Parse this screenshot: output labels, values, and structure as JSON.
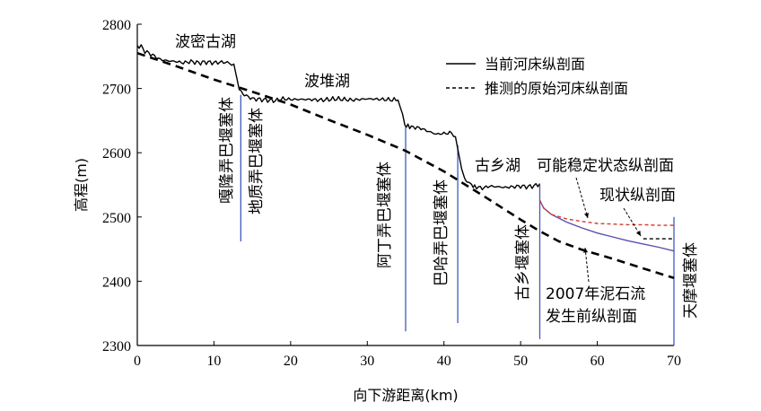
{
  "chart_data": {
    "type": "line",
    "xlabel": "向下游距离(km)",
    "ylabel": "高程(m)",
    "xlim": [
      0,
      70
    ],
    "ylim": [
      2300,
      2800
    ],
    "xticks": [
      0,
      10,
      20,
      30,
      40,
      50,
      60,
      70
    ],
    "yticks": [
      2300,
      2400,
      2500,
      2600,
      2700,
      2800
    ],
    "legend_position": "top-right",
    "legend": [
      "当前河床纵剖面",
      "推测的原始河床纵剖面"
    ],
    "series": [
      {
        "name": "当前河床纵剖面",
        "style": "solid",
        "color": "#000000",
        "x": [
          0,
          0.5,
          1,
          2,
          3,
          4,
          5,
          6,
          7,
          8,
          9,
          10,
          11,
          12,
          12.6,
          13,
          13.3,
          13.6,
          14,
          15,
          16,
          17,
          18,
          19,
          20,
          22,
          24,
          26,
          28,
          30,
          32,
          34,
          34.6,
          34.9,
          35.3,
          36,
          37,
          38,
          39,
          40,
          41,
          41.5,
          41.9,
          42.3,
          42.7,
          43,
          43.6,
          44,
          44.5,
          45,
          46,
          47,
          48,
          49,
          50,
          51,
          52,
          52.5
        ],
        "y": [
          2767,
          2765,
          2758,
          2752,
          2745,
          2743,
          2742,
          2740,
          2742,
          2740,
          2741,
          2740,
          2741,
          2740,
          2738,
          2715,
          2698,
          2693,
          2690,
          2684,
          2683,
          2682,
          2681,
          2684,
          2683,
          2683,
          2682,
          2684,
          2682,
          2684,
          2683,
          2682,
          2660,
          2643,
          2641,
          2640,
          2638,
          2633,
          2629,
          2630,
          2631,
          2625,
          2600,
          2575,
          2560,
          2552,
          2549,
          2548,
          2546,
          2545,
          2548,
          2547,
          2546,
          2547,
          2548,
          2547,
          2549,
          2552
        ]
      },
      {
        "name": "推测的原始河床纵剖面",
        "style": "dashed",
        "color": "#000000",
        "x": [
          0,
          5,
          10,
          15,
          20,
          25,
          30,
          35,
          40,
          45,
          50,
          52.5,
          55,
          58,
          62,
          66,
          70
        ],
        "y": [
          2755,
          2735,
          2714,
          2695,
          2675,
          2651,
          2628,
          2603,
          2571,
          2534,
          2496,
          2478,
          2462,
          2449,
          2435,
          2420,
          2405
        ]
      },
      {
        "style": "solid",
        "color": "#5a4fb0",
        "x": [
          52.5,
          53,
          54,
          56,
          58,
          60,
          62,
          64,
          66,
          68,
          70
        ],
        "y": [
          2526,
          2514,
          2504,
          2492,
          2483,
          2475,
          2469,
          2463,
          2458,
          2453,
          2447
        ]
      },
      {
        "style": "dashed",
        "color": "#d23b2e",
        "x": [
          52.5,
          53,
          54,
          56,
          58,
          60,
          62,
          64,
          66,
          68,
          70
        ],
        "y": [
          2526,
          2514,
          2504,
          2497,
          2493,
          2490,
          2489,
          2488,
          2488,
          2487,
          2487
        ]
      },
      {
        "style": "dashed",
        "color": "#000000",
        "x": [
          66,
          67,
          68,
          69,
          70
        ],
        "y": [
          2466,
          2466,
          2466,
          2466,
          2466
        ]
      }
    ],
    "annotations": [
      "波密古湖",
      "波堆湖",
      "古乡湖",
      "嘎隆弄巴堰塞体",
      "地质弄巴堰塞体",
      "阿丁弄巴堰塞体",
      "巴哈弄巴堰塞体",
      "古乡堰塞体",
      "天摩堰塞体",
      "可能稳定状态纵剖面",
      "现状纵剖面",
      "2007年泥石流",
      "发生前纵剖面"
    ]
  }
}
